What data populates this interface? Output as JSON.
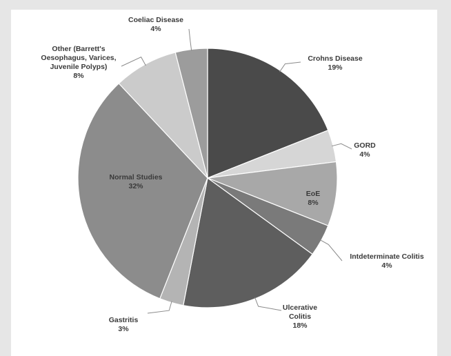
{
  "chart_data": {
    "type": "pie",
    "title": "",
    "slices": [
      {
        "label": "Crohns Disease",
        "label_lines": [
          "Crohns Disease"
        ],
        "value_label": "19%",
        "value": 19,
        "color": "#4a4a4a"
      },
      {
        "label": "GORD",
        "label_lines": [
          "GORD"
        ],
        "value_label": "4%",
        "value": 4,
        "color": "#d6d6d6"
      },
      {
        "label": "EoE",
        "label_lines": [
          "EoE"
        ],
        "value_label": "8%",
        "value": 8,
        "color": "#a8a8a8"
      },
      {
        "label": "Intdeterminate Colitis",
        "label_lines": [
          "Intdeterminate Colitis"
        ],
        "value_label": "4%",
        "value": 4,
        "color": "#7a7a7a"
      },
      {
        "label": "Ulcerative Colitis",
        "label_lines": [
          "Ulcerative",
          "Colitis"
        ],
        "value_label": "18%",
        "value": 18,
        "color": "#5e5e5e"
      },
      {
        "label": "Gastritis",
        "label_lines": [
          "Gastritis"
        ],
        "value_label": "3%",
        "value": 3,
        "color": "#b4b4b4"
      },
      {
        "label": "Normal Studies",
        "label_lines": [
          "Normal Studies"
        ],
        "value_label": "32%",
        "value": 32,
        "color": "#8c8c8c"
      },
      {
        "label": "Other (Barrett's Oesophagus, Varices, Juvenile Polyps)",
        "label_lines": [
          "Other (Barrett's",
          "Oesophagus, Varices,",
          "Juvenile Polyps)"
        ],
        "value_label": "8%",
        "value": 8,
        "color": "#cbcbcb"
      },
      {
        "label": "Coeliac Disease",
        "label_lines": [
          "Coeliac Disease"
        ],
        "value_label": "4%",
        "value": 4,
        "color": "#9c9c9c"
      }
    ]
  }
}
